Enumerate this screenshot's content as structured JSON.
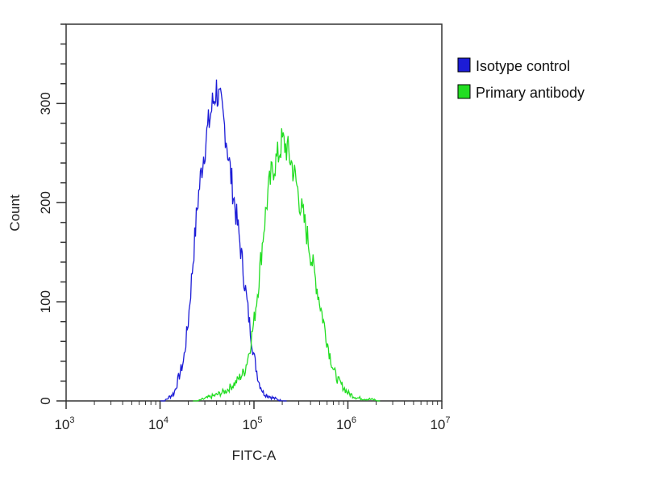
{
  "chart_data": {
    "type": "line",
    "title": "",
    "xlabel": "FITC-A",
    "ylabel": "Count",
    "xscale": "log10",
    "xlim": [
      1000,
      10000000
    ],
    "ylim": [
      0,
      380
    ],
    "grid": false,
    "legend_position": "top-right outside",
    "x_ticks": [
      {
        "base": "10",
        "exp": "3"
      },
      {
        "base": "10",
        "exp": "4"
      },
      {
        "base": "10",
        "exp": "5"
      },
      {
        "base": "10",
        "exp": "6"
      },
      {
        "base": "10",
        "exp": "7"
      }
    ],
    "y_ticks": [
      "0",
      "100",
      "200",
      "300"
    ],
    "y_tick_values": [
      0,
      100,
      200,
      300
    ],
    "series": [
      {
        "name": "Isotype control",
        "color": "#1c1cd6",
        "log10_x": [
          4.05,
          4.15,
          4.25,
          4.3,
          4.35,
          4.4,
          4.45,
          4.5,
          4.55,
          4.6,
          4.65,
          4.7,
          4.75,
          4.8,
          4.85,
          4.9,
          4.95,
          5.0,
          5.05,
          5.1,
          5.2,
          5.3
        ],
        "count": [
          0,
          8,
          40,
          80,
          140,
          200,
          240,
          270,
          295,
          315,
          295,
          270,
          230,
          195,
          160,
          120,
          80,
          45,
          20,
          8,
          3,
          0
        ]
      },
      {
        "name": "Primary antibody",
        "color": "#22dd22",
        "log10_x": [
          4.4,
          4.5,
          4.6,
          4.7,
          4.8,
          4.9,
          4.95,
          5.0,
          5.05,
          5.1,
          5.15,
          5.2,
          5.25,
          5.3,
          5.35,
          5.4,
          5.45,
          5.5,
          5.55,
          5.6,
          5.65,
          5.7,
          5.75,
          5.8,
          5.85,
          5.9,
          6.0,
          6.1,
          6.3
        ],
        "count": [
          0,
          3,
          6,
          10,
          18,
          30,
          50,
          80,
          120,
          170,
          210,
          235,
          245,
          262,
          255,
          240,
          220,
          195,
          175,
          150,
          125,
          100,
          75,
          50,
          30,
          20,
          8,
          3,
          1
        ]
      }
    ]
  }
}
